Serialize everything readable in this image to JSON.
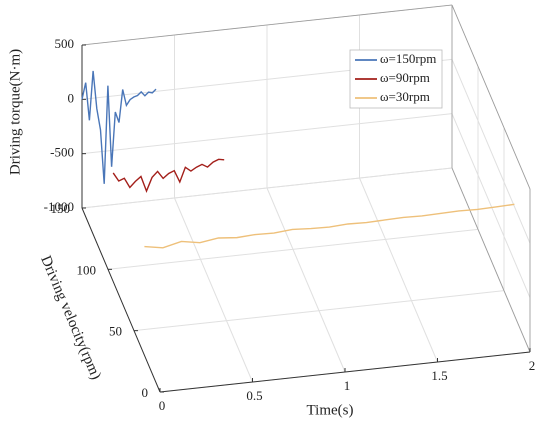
{
  "chart_data": {
    "type": "line3d",
    "xlabel": "Time(s)",
    "ylabel": "Driving velocity(rpm)",
    "zlabel": "Driving torque(N·m)",
    "xlim": [
      0,
      2
    ],
    "xticks": [
      0,
      0.5,
      1,
      1.5,
      2
    ],
    "ylim": [
      0,
      150
    ],
    "yticks": [
      0,
      50,
      100,
      150
    ],
    "zlim": [
      -1000,
      500
    ],
    "zticks": [
      -1000,
      -500,
      0,
      500
    ],
    "grid": true,
    "legend": "upper right",
    "series": [
      {
        "name": "ω=150rpm",
        "color": "#4a76b8",
        "velocity": 150,
        "x": [
          0,
          0.02,
          0.04,
          0.06,
          0.08,
          0.1,
          0.12,
          0.14,
          0.16,
          0.18,
          0.2,
          0.22,
          0.24,
          0.26,
          0.28,
          0.3,
          0.32,
          0.34,
          0.36,
          0.38,
          0.4
        ],
        "values": [
          0,
          150,
          -200,
          250,
          -100,
          -300,
          -800,
          100,
          -650,
          -150,
          -250,
          50,
          -100,
          -50,
          -30,
          -20,
          10,
          -30,
          0,
          -10,
          20
        ]
      },
      {
        "name": "ω=90rpm",
        "color": "#a31f1a",
        "velocity": 90,
        "x": [
          0,
          0.03,
          0.06,
          0.09,
          0.12,
          0.15,
          0.18,
          0.21,
          0.24,
          0.27,
          0.3,
          0.33,
          0.36,
          0.39,
          0.42,
          0.45,
          0.48,
          0.51,
          0.54,
          0.57,
          0.6
        ],
        "values": [
          0,
          -80,
          -60,
          -150,
          -100,
          -60,
          -200,
          -80,
          -30,
          -100,
          -60,
          -40,
          -150,
          -20,
          -60,
          -30,
          -10,
          -40,
          0,
          20,
          10
        ]
      },
      {
        "name": "ω=30rpm",
        "color": "#eec07a",
        "velocity": 30,
        "x": [
          0,
          0.1,
          0.2,
          0.3,
          0.4,
          0.5,
          0.6,
          0.7,
          0.8,
          0.9,
          1,
          1.1,
          1.2,
          1.3,
          1.4,
          1.5,
          1.6,
          1.7,
          1.8,
          1.9,
          2
        ],
        "values": [
          0,
          -30,
          10,
          -20,
          5,
          -10,
          0,
          -5,
          10,
          0,
          -5,
          5,
          0,
          5,
          10,
          5,
          10,
          15,
          10,
          15,
          20
        ]
      }
    ]
  }
}
